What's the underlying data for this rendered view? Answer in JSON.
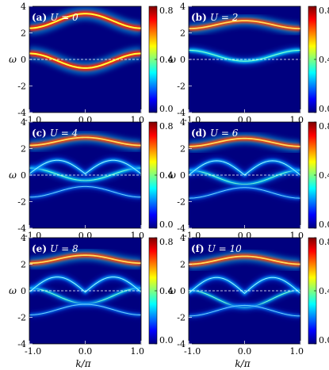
{
  "figure": {
    "xlabel": "k/π",
    "ylabel": "ω"
  },
  "chart_data": [
    {
      "type": "heatmap",
      "panel_label": "(a)",
      "param_label": "U = 0",
      "U": 0,
      "xlim": [
        -1.0,
        1.0
      ],
      "ylim": [
        -4,
        4
      ],
      "colorbar": {
        "min": 0.0,
        "max": 0.8,
        "ticks": [
          "0.0",
          "0.4",
          "0.8"
        ]
      },
      "xticks": [
        "-1.0",
        "0.0",
        "1.0"
      ],
      "yticks": [
        "-4",
        "-2",
        "0",
        "2",
        "4"
      ],
      "fermi_level": 0
    },
    {
      "type": "heatmap",
      "panel_label": "(b)",
      "param_label": "U = 2",
      "U": 2,
      "xlim": [
        -1.0,
        1.0
      ],
      "ylim": [
        -4,
        4
      ],
      "colorbar": {
        "min": 0.0,
        "max": 0.8,
        "ticks": [
          "0.0",
          "0.4",
          "0.8"
        ]
      },
      "xticks": [
        "-1.0",
        "0.0",
        "1.0"
      ],
      "yticks": [
        "-4",
        "-2",
        "0",
        "2",
        "4"
      ],
      "fermi_level": 0
    },
    {
      "type": "heatmap",
      "panel_label": "(c)",
      "param_label": "U = 4",
      "U": 4,
      "xlim": [
        -1.0,
        1.0
      ],
      "ylim": [
        -4,
        4
      ],
      "colorbar": {
        "min": 0.0,
        "max": 0.8,
        "ticks": [
          "0.0",
          "0.4",
          "0.8"
        ]
      },
      "xticks": [
        "-1.0",
        "0.0",
        "1.0"
      ],
      "yticks": [
        "-4",
        "-2",
        "0",
        "2",
        "4"
      ],
      "fermi_level": 0
    },
    {
      "type": "heatmap",
      "panel_label": "(d)",
      "param_label": "U = 6",
      "U": 6,
      "xlim": [
        -1.0,
        1.0
      ],
      "ylim": [
        -4,
        4
      ],
      "colorbar": {
        "min": 0.0,
        "max": 0.8,
        "ticks": [
          "0.0",
          "0.4",
          "0.8"
        ]
      },
      "xticks": [
        "-1.0",
        "0.0",
        "1.0"
      ],
      "yticks": [
        "-4",
        "-2",
        "0",
        "2",
        "4"
      ],
      "fermi_level": 0
    },
    {
      "type": "heatmap",
      "panel_label": "(e)",
      "param_label": "U = 8",
      "U": 8,
      "xlim": [
        -1.0,
        1.0
      ],
      "ylim": [
        -4,
        4
      ],
      "colorbar": {
        "min": 0.0,
        "max": 0.8,
        "ticks": [
          "0.0",
          "0.4",
          "0.8"
        ]
      },
      "xticks": [
        "-1.0",
        "0.0",
        "1.0"
      ],
      "yticks": [
        "-4",
        "-2",
        "0",
        "2",
        "4"
      ],
      "fermi_level": 0
    },
    {
      "type": "heatmap",
      "panel_label": "(f)",
      "param_label": "U = 10",
      "U": 10,
      "xlim": [
        -1.0,
        1.0
      ],
      "ylim": [
        -4,
        4
      ],
      "colorbar": {
        "min": 0.0,
        "max": 0.8,
        "ticks": [
          "0.0",
          "0.4",
          "0.8"
        ]
      },
      "xticks": [
        "-1.0",
        "0.0",
        "1.0"
      ],
      "yticks": [
        "-4",
        "-2",
        "0",
        "2",
        "4"
      ],
      "fermi_level": 0
    }
  ]
}
